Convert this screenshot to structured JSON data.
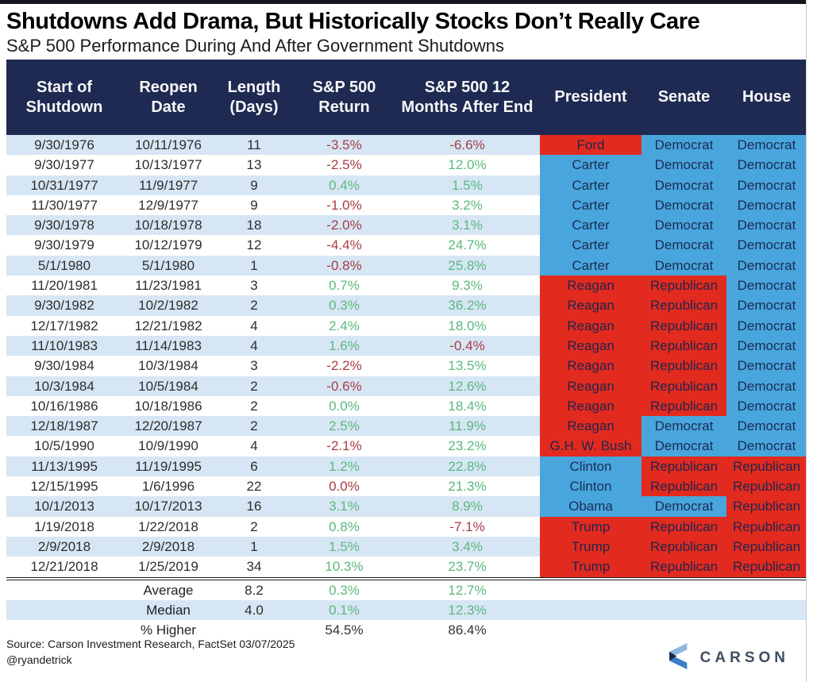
{
  "page": {
    "title": "Shutdowns Add Drama, But Historically Stocks Don’t Really Care",
    "subtitle": "S&P 500 Performance During And After Government Shutdowns"
  },
  "colors": {
    "header_bg": "#1e2a52",
    "row_alt": "#d6e6f4",
    "republican": "#e32a1e",
    "democrat": "#48a6dd",
    "positive": "#5cb87d",
    "negative": "#a83c44"
  },
  "chart_data": {
    "type": "table",
    "title": "Shutdowns Add Drama, But Historically Stocks Don’t Really Care",
    "subtitle": "S&P 500 Performance During And After Government Shutdowns",
    "columns": [
      "Start of Shutdown",
      "Reopen Date",
      "Length (Days)",
      "S&P 500 Return",
      "S&P 500 12 Months After End",
      "President",
      "Senate",
      "House"
    ],
    "rows": [
      {
        "start": "9/30/1976",
        "reopen": "10/11/1976",
        "length": "11",
        "ret": "-3.5%",
        "ret_color": "neg",
        "after": "-6.6%",
        "after_color": "neg",
        "president": "Ford",
        "president_party": "R",
        "senate": "Democrat",
        "house": "Democrat"
      },
      {
        "start": "9/30/1977",
        "reopen": "10/13/1977",
        "length": "13",
        "ret": "-2.5%",
        "ret_color": "neg",
        "after": "12.0%",
        "after_color": "pos",
        "president": "Carter",
        "president_party": "D",
        "senate": "Democrat",
        "house": "Democrat"
      },
      {
        "start": "10/31/1977",
        "reopen": "11/9/1977",
        "length": "9",
        "ret": "0.4%",
        "ret_color": "pos",
        "after": "1.5%",
        "after_color": "pos",
        "president": "Carter",
        "president_party": "D",
        "senate": "Democrat",
        "house": "Democrat"
      },
      {
        "start": "11/30/1977",
        "reopen": "12/9/1977",
        "length": "9",
        "ret": "-1.0%",
        "ret_color": "neg",
        "after": "3.2%",
        "after_color": "pos",
        "president": "Carter",
        "president_party": "D",
        "senate": "Democrat",
        "house": "Democrat"
      },
      {
        "start": "9/30/1978",
        "reopen": "10/18/1978",
        "length": "18",
        "ret": "-2.0%",
        "ret_color": "neg",
        "after": "3.1%",
        "after_color": "pos",
        "president": "Carter",
        "president_party": "D",
        "senate": "Democrat",
        "house": "Democrat"
      },
      {
        "start": "9/30/1979",
        "reopen": "10/12/1979",
        "length": "12",
        "ret": "-4.4%",
        "ret_color": "neg",
        "after": "24.7%",
        "after_color": "pos",
        "president": "Carter",
        "president_party": "D",
        "senate": "Democrat",
        "house": "Democrat"
      },
      {
        "start": "5/1/1980",
        "reopen": "5/1/1980",
        "length": "1",
        "ret": "-0.8%",
        "ret_color": "neg",
        "after": "25.8%",
        "after_color": "pos",
        "president": "Carter",
        "president_party": "D",
        "senate": "Democrat",
        "house": "Democrat"
      },
      {
        "start": "11/20/1981",
        "reopen": "11/23/1981",
        "length": "3",
        "ret": "0.7%",
        "ret_color": "pos",
        "after": "9.3%",
        "after_color": "pos",
        "president": "Reagan",
        "president_party": "R",
        "senate": "Republican",
        "house": "Democrat"
      },
      {
        "start": "9/30/1982",
        "reopen": "10/2/1982",
        "length": "2",
        "ret": "0.3%",
        "ret_color": "pos",
        "after": "36.2%",
        "after_color": "pos",
        "president": "Reagan",
        "president_party": "R",
        "senate": "Republican",
        "house": "Democrat"
      },
      {
        "start": "12/17/1982",
        "reopen": "12/21/1982",
        "length": "4",
        "ret": "2.4%",
        "ret_color": "pos",
        "after": "18.0%",
        "after_color": "pos",
        "president": "Reagan",
        "president_party": "R",
        "senate": "Republican",
        "house": "Democrat"
      },
      {
        "start": "11/10/1983",
        "reopen": "11/14/1983",
        "length": "4",
        "ret": "1.6%",
        "ret_color": "pos",
        "after": "-0.4%",
        "after_color": "neg",
        "president": "Reagan",
        "president_party": "R",
        "senate": "Republican",
        "house": "Democrat"
      },
      {
        "start": "9/30/1984",
        "reopen": "10/3/1984",
        "length": "3",
        "ret": "-2.2%",
        "ret_color": "neg",
        "after": "13.5%",
        "after_color": "pos",
        "president": "Reagan",
        "president_party": "R",
        "senate": "Republican",
        "house": "Democrat"
      },
      {
        "start": "10/3/1984",
        "reopen": "10/5/1984",
        "length": "2",
        "ret": "-0.6%",
        "ret_color": "neg",
        "after": "12.6%",
        "after_color": "pos",
        "president": "Reagan",
        "president_party": "R",
        "senate": "Republican",
        "house": "Democrat"
      },
      {
        "start": "10/16/1986",
        "reopen": "10/18/1986",
        "length": "2",
        "ret": "0.0%",
        "ret_color": "pos",
        "after": "18.4%",
        "after_color": "pos",
        "president": "Reagan",
        "president_party": "R",
        "senate": "Republican",
        "house": "Democrat"
      },
      {
        "start": "12/18/1987",
        "reopen": "12/20/1987",
        "length": "2",
        "ret": "2.5%",
        "ret_color": "pos",
        "after": "11.9%",
        "after_color": "pos",
        "president": "Reagan",
        "president_party": "R",
        "senate": "Democrat",
        "house": "Democrat"
      },
      {
        "start": "10/5/1990",
        "reopen": "10/9/1990",
        "length": "4",
        "ret": "-2.1%",
        "ret_color": "neg",
        "after": "23.2%",
        "after_color": "pos",
        "president": "G.H. W. Bush",
        "president_party": "R",
        "senate": "Democrat",
        "house": "Democrat"
      },
      {
        "start": "11/13/1995",
        "reopen": "11/19/1995",
        "length": "6",
        "ret": "1.2%",
        "ret_color": "pos",
        "after": "22.8%",
        "after_color": "pos",
        "president": "Clinton",
        "president_party": "D",
        "senate": "Republican",
        "house": "Republican"
      },
      {
        "start": "12/15/1995",
        "reopen": "1/6/1996",
        "length": "22",
        "ret": "0.0%",
        "ret_color": "neg",
        "after": "21.3%",
        "after_color": "pos",
        "president": "Clinton",
        "president_party": "D",
        "senate": "Republican",
        "house": "Republican"
      },
      {
        "start": "10/1/2013",
        "reopen": "10/17/2013",
        "length": "16",
        "ret": "3.1%",
        "ret_color": "pos",
        "after": "8.9%",
        "after_color": "pos",
        "president": "Obama",
        "president_party": "D",
        "senate": "Democrat",
        "house": "Republican"
      },
      {
        "start": "1/19/2018",
        "reopen": "1/22/2018",
        "length": "2",
        "ret": "0.8%",
        "ret_color": "pos",
        "after": "-7.1%",
        "after_color": "neg",
        "president": "Trump",
        "president_party": "R",
        "senate": "Republican",
        "house": "Republican"
      },
      {
        "start": "2/9/2018",
        "reopen": "2/9/2018",
        "length": "1",
        "ret": "1.5%",
        "ret_color": "pos",
        "after": "3.4%",
        "after_color": "pos",
        "president": "Trump",
        "president_party": "R",
        "senate": "Republican",
        "house": "Republican"
      },
      {
        "start": "12/21/2018",
        "reopen": "1/25/2019",
        "length": "34",
        "ret": "10.3%",
        "ret_color": "pos",
        "after": "23.7%",
        "after_color": "pos",
        "president": "Trump",
        "president_party": "R",
        "senate": "Republican",
        "house": "Republican"
      }
    ],
    "summary": [
      {
        "label": "Average",
        "length": "8.2",
        "ret": "0.3%",
        "ret_color": "pos",
        "after": "12.7%",
        "after_color": "pos",
        "shade": "white"
      },
      {
        "label": "Median",
        "length": "4.0",
        "ret": "0.1%",
        "ret_color": "pos",
        "after": "12.3%",
        "after_color": "pos",
        "shade": "alt"
      },
      {
        "label": "% Higher",
        "length": "",
        "ret": "54.5%",
        "ret_color": "plain",
        "after": "86.4%",
        "after_color": "plain",
        "shade": "white"
      }
    ]
  },
  "footer": {
    "source": "Source: Carson Investment Research, FactSet 03/07/2025",
    "handle": "@ryandetrick",
    "logo_text": "CARSON"
  }
}
